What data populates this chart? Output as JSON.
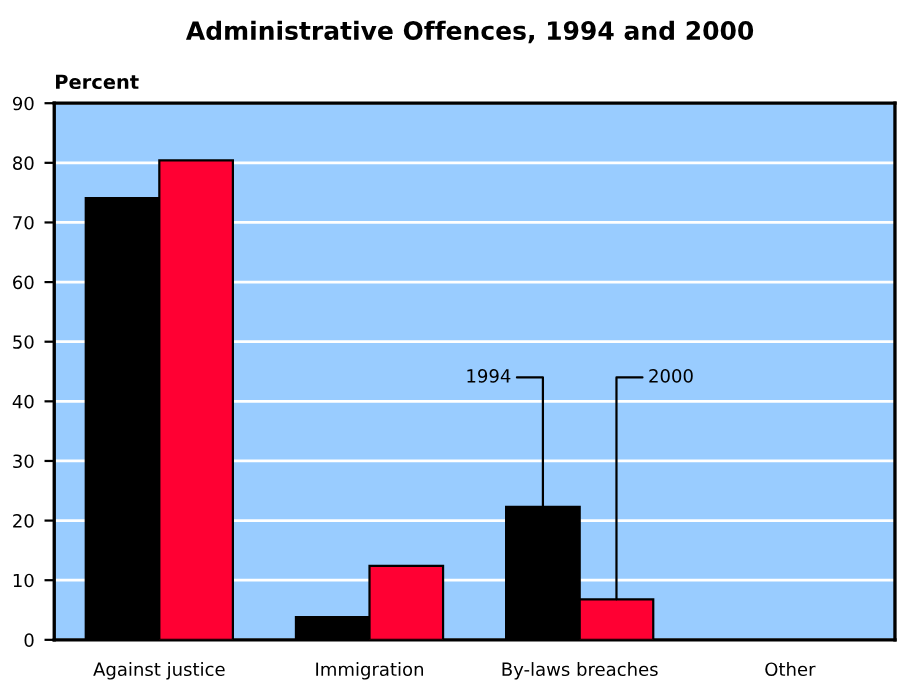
{
  "chart_data": {
    "type": "bar",
    "title": "Administrative Offences, 1994 and 2000",
    "ylabel": "Percent",
    "categories": [
      "Against justice",
      "Immigration",
      "By-laws breaches",
      "Other"
    ],
    "series": [
      {
        "name": "1994",
        "color": "#000000",
        "values": [
          74.1,
          3.8,
          22.3,
          null
        ]
      },
      {
        "name": "2000",
        "color": "#ff0033",
        "values": [
          80.4,
          12.4,
          6.8,
          null
        ]
      }
    ],
    "ylim": [
      0,
      90
    ],
    "yticks": [
      0,
      10,
      20,
      30,
      40,
      50,
      60,
      70,
      80,
      90
    ],
    "grid": "y",
    "legend": false
  }
}
